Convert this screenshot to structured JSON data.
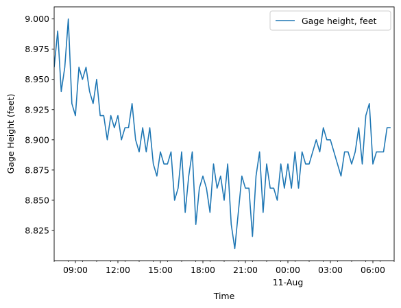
{
  "chart_data": {
    "type": "line",
    "title": "",
    "xlabel": "Time",
    "ylabel": "Gage Height (feet)",
    "x_ticks": [
      {
        "label": "09:00",
        "t": 1.5
      },
      {
        "label": "12:00",
        "t": 4.5
      },
      {
        "label": "15:00",
        "t": 7.5
      },
      {
        "label": "18:00",
        "t": 10.5
      },
      {
        "label": "21:00",
        "t": 13.5
      },
      {
        "label": "00:00",
        "t": 16.5,
        "sublabel": "11-Aug"
      },
      {
        "label": "03:00",
        "t": 19.5
      },
      {
        "label": "06:00",
        "t": 22.5
      }
    ],
    "y_ticks": [
      8.825,
      8.85,
      8.875,
      8.9,
      8.925,
      8.95,
      8.975,
      9.0
    ],
    "y_tick_labels": [
      "8.825",
      "8.850",
      "8.875",
      "8.900",
      "8.925",
      "8.950",
      "8.975",
      "9.000"
    ],
    "xlim": [
      0,
      24
    ],
    "ylim": [
      8.8,
      9.01
    ],
    "grid": false,
    "legend": {
      "placement": "top-right",
      "entries": [
        "Gage height, feet"
      ]
    },
    "series": [
      {
        "name": "Gage height, feet",
        "color": "#1f77b4",
        "t_step_hours": 0.25,
        "values": [
          8.96,
          8.99,
          8.94,
          8.96,
          9.0,
          8.93,
          8.92,
          8.96,
          8.95,
          8.96,
          8.94,
          8.93,
          8.95,
          8.92,
          8.92,
          8.9,
          8.92,
          8.91,
          8.92,
          8.9,
          8.91,
          8.91,
          8.93,
          8.9,
          8.89,
          8.91,
          8.89,
          8.91,
          8.88,
          8.87,
          8.89,
          8.88,
          8.88,
          8.89,
          8.85,
          8.86,
          8.89,
          8.84,
          8.87,
          8.89,
          8.83,
          8.86,
          8.87,
          8.86,
          8.84,
          8.88,
          8.86,
          8.87,
          8.85,
          8.88,
          8.83,
          8.81,
          8.84,
          8.87,
          8.86,
          8.86,
          8.82,
          8.87,
          8.89,
          8.84,
          8.88,
          8.86,
          8.86,
          8.85,
          8.88,
          8.86,
          8.88,
          8.86,
          8.89,
          8.86,
          8.89,
          8.88,
          8.88,
          8.89,
          8.9,
          8.89,
          8.91,
          8.9,
          8.9,
          8.89,
          8.88,
          8.87,
          8.89,
          8.89,
          8.88,
          8.89,
          8.91,
          8.88,
          8.92,
          8.93,
          8.88,
          8.89,
          8.89,
          8.89,
          8.91,
          8.91
        ]
      }
    ]
  }
}
